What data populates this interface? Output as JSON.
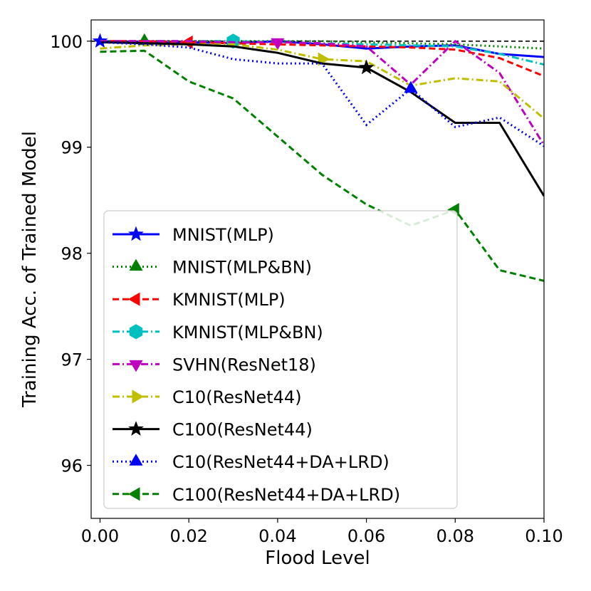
{
  "chart_data": {
    "type": "line",
    "title": "",
    "xlabel": "Flood Level",
    "ylabel": "Training Acc. of Trained Model",
    "xlim": [
      -0.002,
      0.1
    ],
    "ylim": [
      95.5,
      100.2
    ],
    "x_ticks": [
      "0.00",
      "0.02",
      "0.04",
      "0.06",
      "0.08",
      "0.10"
    ],
    "y_ticks": [
      "96",
      "97",
      "98",
      "99",
      "100"
    ],
    "reference_line": {
      "y": 100,
      "style": "dashed",
      "color": "#000000"
    },
    "grid": false,
    "legend_position": "bottom-left",
    "series": [
      {
        "name": "MNIST(MLP)",
        "color": "#0000ff",
        "dash": "solid",
        "marker": "star",
        "x": [
          0,
          0.01,
          0.02,
          0.03,
          0.04,
          0.05,
          0.06,
          0.07,
          0.08,
          0.09,
          0.1
        ],
        "y": [
          100.0,
          99.99,
          99.99,
          99.98,
          100.0,
          99.97,
          99.93,
          99.95,
          99.96,
          99.88,
          99.85
        ]
      },
      {
        "name": "MNIST(MLP&BN)",
        "color": "#008000",
        "dash": "dotted",
        "marker": "triangle-up",
        "x": [
          0,
          0.01,
          0.02,
          0.03,
          0.04,
          0.05,
          0.06,
          0.07,
          0.08,
          0.09,
          0.1
        ],
        "y": [
          100.0,
          100.0,
          100.0,
          100.0,
          100.0,
          100.0,
          99.99,
          99.98,
          99.97,
          99.95,
          99.93
        ]
      },
      {
        "name": "KMNIST(MLP)",
        "color": "#ff0000",
        "dash": "dashed",
        "marker": "triangle-left",
        "x": [
          0,
          0.01,
          0.02,
          0.03,
          0.04,
          0.05,
          0.06,
          0.07,
          0.08,
          0.09,
          0.1
        ],
        "y": [
          100.0,
          100.0,
          99.99,
          99.98,
          99.97,
          99.96,
          99.95,
          99.94,
          99.92,
          99.84,
          99.67
        ]
      },
      {
        "name": "KMNIST(MLP&BN)",
        "color": "#00bfbf",
        "dash": "dashdot",
        "marker": "hexagon",
        "x": [
          0,
          0.01,
          0.02,
          0.03,
          0.04,
          0.05,
          0.06,
          0.07,
          0.08,
          0.09,
          0.1
        ],
        "y": [
          100.0,
          100.0,
          100.0,
          100.0,
          99.99,
          99.98,
          99.97,
          99.96,
          99.95,
          99.88,
          99.78
        ]
      },
      {
        "name": "SVHN(ResNet18)",
        "color": "#bf00bf",
        "dash": "dashdot",
        "marker": "triangle-down",
        "x": [
          0,
          0.01,
          0.02,
          0.03,
          0.04,
          0.05,
          0.06,
          0.07,
          0.08,
          0.09,
          0.1
        ],
        "y": [
          100.0,
          100.0,
          100.0,
          99.99,
          99.99,
          99.98,
          99.95,
          99.59,
          100.0,
          99.7,
          99.02
        ]
      },
      {
        "name": "C10(ResNet44)",
        "color": "#bfbf00",
        "dash": "dashdot",
        "marker": "triangle-right",
        "x": [
          0,
          0.01,
          0.02,
          0.03,
          0.04,
          0.05,
          0.06,
          0.07,
          0.08,
          0.09,
          0.1
        ],
        "y": [
          99.93,
          99.96,
          99.97,
          99.97,
          99.92,
          99.83,
          99.81,
          99.58,
          99.65,
          99.62,
          99.27
        ]
      },
      {
        "name": "C100(ResNet44)",
        "color": "#000000",
        "dash": "solid",
        "marker": "star",
        "x": [
          0,
          0.01,
          0.02,
          0.03,
          0.04,
          0.05,
          0.06,
          0.07,
          0.08,
          0.09,
          0.1
        ],
        "y": [
          99.99,
          99.98,
          99.97,
          99.95,
          99.89,
          99.79,
          99.75,
          99.52,
          99.23,
          99.23,
          98.54
        ]
      },
      {
        "name": "C10(ResNet44+DA+LRD)",
        "color": "#0000ff",
        "dash": "dotted",
        "marker": "triangle-up",
        "x": [
          0,
          0.01,
          0.02,
          0.03,
          0.04,
          0.05,
          0.06,
          0.07,
          0.08,
          0.09,
          0.1
        ],
        "y": [
          99.99,
          99.97,
          99.94,
          99.83,
          99.79,
          99.79,
          99.21,
          99.55,
          99.19,
          99.28,
          99.01
        ]
      },
      {
        "name": "C100(ResNet44+DA+LRD)",
        "color": "#008000",
        "dash": "dashed",
        "marker": "triangle-left",
        "x": [
          0,
          0.01,
          0.02,
          0.03,
          0.04,
          0.05,
          0.06,
          0.07,
          0.08,
          0.09,
          0.1
        ],
        "y": [
          99.9,
          99.91,
          99.62,
          99.46,
          99.1,
          98.74,
          98.46,
          98.26,
          98.41,
          97.84,
          97.74
        ]
      }
    ]
  }
}
